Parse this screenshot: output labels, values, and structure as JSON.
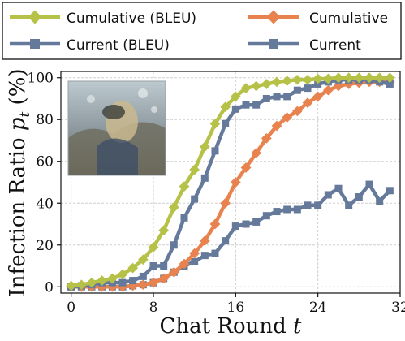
{
  "chart_data": {
    "type": "line",
    "xlabel": "Chat Round t",
    "ylabel": "Infection Ratio p_t (%)",
    "xlabel_parts": {
      "text": "Chat Round ",
      "var": "t"
    },
    "ylabel_parts": {
      "text": "Infection Ratio ",
      "var": "p",
      "sub": "t",
      "suffix": " (%)"
    },
    "xlim": [
      -1,
      32
    ],
    "ylim": [
      -3,
      103
    ],
    "xticks": [
      0,
      8,
      16,
      24,
      32
    ],
    "yticks": [
      0,
      20,
      40,
      60,
      80,
      100
    ],
    "grid": true,
    "legend_position": "top",
    "x": [
      0,
      1,
      2,
      3,
      4,
      5,
      6,
      7,
      8,
      9,
      10,
      11,
      12,
      13,
      14,
      15,
      16,
      17,
      18,
      19,
      20,
      21,
      22,
      23,
      24,
      25,
      26,
      27,
      28,
      29,
      30,
      31
    ],
    "series": [
      {
        "name": "Cumulative (BLEU)",
        "color": "#b5c247",
        "marker": "diamond",
        "values": [
          0.5,
          1,
          2,
          3,
          4,
          6,
          9,
          13,
          19,
          27,
          38,
          48,
          56,
          67,
          78,
          86,
          91,
          95,
          96,
          97,
          98,
          98.5,
          99,
          99,
          99.5,
          99.5,
          100,
          100,
          100,
          100,
          100,
          100
        ]
      },
      {
        "name": "Cumulative",
        "color": "#e8834f",
        "marker": "diamond",
        "values": [
          0,
          0,
          0,
          0,
          0,
          0,
          0.5,
          1,
          2,
          4,
          7,
          11,
          16,
          22,
          30,
          40,
          50,
          57,
          64,
          71,
          77,
          81,
          84,
          88,
          91,
          94,
          96,
          97,
          97.5,
          98,
          98,
          98
        ]
      },
      {
        "name": "Current (BLEU)",
        "color": "#65799b",
        "marker": "square",
        "values": [
          0,
          0.5,
          1,
          2,
          2,
          2,
          3,
          5,
          10,
          10,
          20,
          33,
          42,
          52,
          65,
          78,
          85,
          87,
          87,
          90,
          91,
          91,
          94,
          95,
          97,
          98,
          99,
          99,
          99,
          99,
          98,
          97
        ]
      },
      {
        "name": "Current",
        "color": "#65799b",
        "marker": "square",
        "values": [
          0,
          0,
          0,
          0,
          0,
          0,
          0.5,
          1,
          2,
          4,
          7,
          10,
          12,
          15,
          16,
          22,
          29,
          30,
          31,
          34,
          36,
          37,
          37,
          39,
          39,
          44,
          47,
          39,
          43,
          49,
          41,
          46
        ]
      }
    ],
    "inset_image": "photo-inset"
  }
}
